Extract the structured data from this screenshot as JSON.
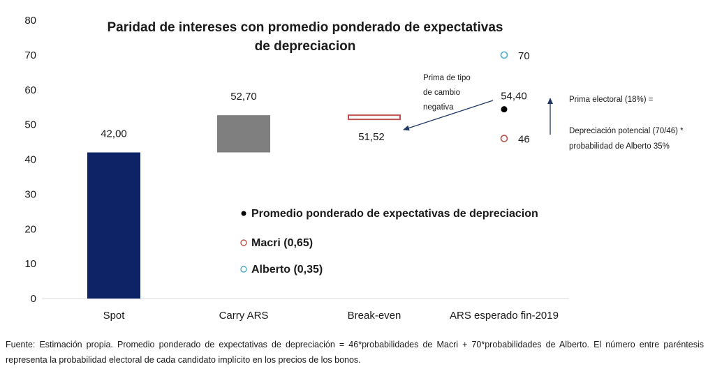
{
  "chart_data": {
    "type": "bar",
    "title": "Paridad de intereses con promedio ponderado de expectativas de depreciacion",
    "title_lines": [
      "Paridad de intereses con promedio ponderado de expectativas",
      "de depreciacion"
    ],
    "ylim": [
      0,
      80
    ],
    "yticks": [
      "0",
      "10",
      "20",
      "30",
      "40",
      "50",
      "60",
      "70",
      "80"
    ],
    "categories": [
      "Spot",
      "Carry ARS",
      "Break-even",
      "ARS esperado fin-2019"
    ],
    "bars": [
      {
        "category": "Spot",
        "start": 0,
        "end": 42.0,
        "label": "42,00",
        "style": "solid",
        "color": "#0d2366"
      },
      {
        "category": "Carry ARS",
        "start": 42.0,
        "end": 52.7,
        "label": "52,70",
        "style": "solid",
        "color": "#7f7f7f"
      },
      {
        "category": "Break-even",
        "start": 51.52,
        "end": 52.7,
        "label": "51,52",
        "style": "outline",
        "color": "#c0504d"
      }
    ],
    "points": [
      {
        "category": "ARS esperado fin-2019",
        "y": 70,
        "label": "70",
        "series": "Alberto (0,35)",
        "marker": "open-circle",
        "color": "#4bacc6"
      },
      {
        "category": "ARS esperado fin-2019",
        "y": 54.4,
        "label": "54,40",
        "series": "Promedio ponderado de expectativas de depreciacion",
        "marker": "filled-circle",
        "color": "#000000"
      },
      {
        "category": "ARS esperado fin-2019",
        "y": 46,
        "label": "46",
        "series": "Macri  (0,65)",
        "marker": "open-circle",
        "color": "#c0504d"
      }
    ],
    "legend": [
      {
        "label": "Promedio ponderado de expectativas de depreciacion",
        "marker": "filled-circle",
        "color": "#000000"
      },
      {
        "label": "Macri  (0,65)",
        "marker": "open-circle",
        "color": "#c0504d"
      },
      {
        "label": "Alberto (0,35)",
        "marker": "open-circle",
        "color": "#4bacc6"
      }
    ],
    "legend_position": "center",
    "grid": false,
    "annotations": {
      "prima_tipo_cambio": [
        "Prima de tipo",
        "de cambio",
        "negativa"
      ],
      "prima_electoral": "Prima electoral (18%) =",
      "depreciacion": [
        "Depreciación potencial (70/46) *",
        "probabilidad de Alberto 35%"
      ]
    },
    "arrow_color": "#1f3864"
  },
  "footnote": "Fuente: Estimación propia. Promedio ponderado de expectativas de depreciación = 46*probabilidades de Macri + 70*probabilidades de Alberto. El número entre paréntesis representa la probabilidad electoral de cada candidato implícito en los precios de los bonos."
}
